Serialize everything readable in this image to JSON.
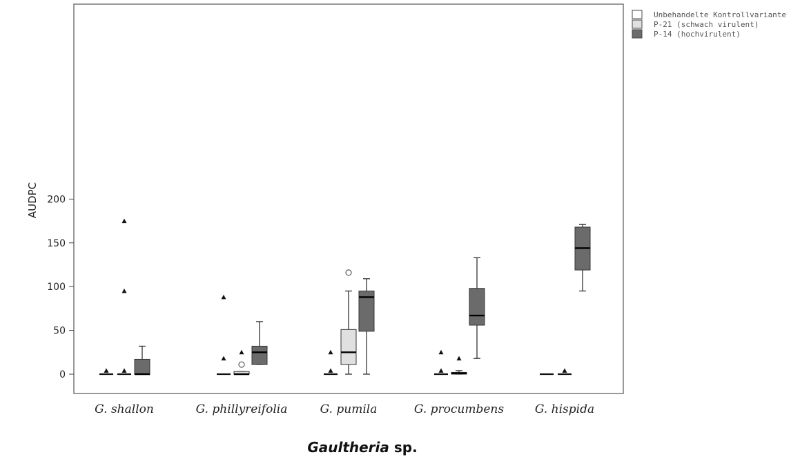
{
  "chart_data": {
    "type": "boxplot",
    "ylabel": "AUDPC",
    "xlabel_italic": "Gaultheria",
    "xlabel_rest": " sp.",
    "yticks": [
      0,
      50,
      100,
      150,
      200
    ],
    "ylim": [
      -10,
      210
    ],
    "categories": [
      "G. shallon",
      "G. phillyreifolia",
      "G. pumila",
      "G. procumbens",
      "G. hispida"
    ],
    "series": [
      {
        "name": "Unbehandelte Kontrollvariante",
        "color": "#ffffff",
        "boxes": [
          {
            "min": 0,
            "q1": 0,
            "median": 0,
            "q3": 0,
            "max": 0,
            "outliers": [],
            "extremes": [
              4
            ]
          },
          {
            "min": 0,
            "q1": 0,
            "median": 0,
            "q3": 0,
            "max": 0,
            "outliers": [],
            "extremes": [
              18,
              88
            ]
          },
          {
            "min": 0,
            "q1": 0,
            "median": 0,
            "q3": 0,
            "max": 0,
            "outliers": [],
            "extremes": [
              4,
              25
            ]
          },
          {
            "min": 0,
            "q1": 0,
            "median": 0,
            "q3": 0,
            "max": 0,
            "outliers": [],
            "extremes": [
              4,
              25
            ]
          },
          {
            "min": 0,
            "q1": 0,
            "median": 0,
            "q3": 0,
            "max": 0,
            "outliers": [],
            "extremes": []
          }
        ]
      },
      {
        "name": "P-21 (schwach virulent)",
        "color": "#e0e0e0",
        "boxes": [
          {
            "min": 0,
            "q1": 0,
            "median": 0,
            "q3": 0,
            "max": 0,
            "outliers": [],
            "extremes": [
              4,
              95,
              175
            ]
          },
          {
            "min": 0,
            "q1": 0,
            "median": 0,
            "q3": 3,
            "max": 3,
            "outliers": [
              11
            ],
            "extremes": [
              25
            ]
          },
          {
            "min": 0,
            "q1": 11,
            "median": 25,
            "q3": 51,
            "max": 95,
            "outliers": [
              116
            ],
            "extremes": []
          },
          {
            "min": 0,
            "q1": 0,
            "median": 1,
            "q3": 2,
            "max": 4,
            "outliers": [],
            "extremes": [
              18
            ]
          },
          {
            "min": 0,
            "q1": 0,
            "median": 0,
            "q3": 0,
            "max": 0,
            "outliers": [],
            "extremes": [
              4
            ]
          }
        ]
      },
      {
        "name": "P-14 (hochvirulent)",
        "color": "#6b6b6b",
        "boxes": [
          {
            "min": 0,
            "q1": 0,
            "median": 0,
            "q3": 17,
            "max": 32,
            "outliers": [],
            "extremes": []
          },
          {
            "min": 11,
            "q1": 11,
            "median": 25,
            "q3": 32,
            "max": 60,
            "outliers": [],
            "extremes": []
          },
          {
            "min": 0,
            "q1": 49,
            "median": 88,
            "q3": 95,
            "max": 109,
            "outliers": [],
            "extremes": []
          },
          {
            "min": 18,
            "q1": 56,
            "median": 67,
            "q3": 98,
            "max": 133,
            "outliers": [],
            "extremes": []
          },
          {
            "min": 95,
            "q1": 119,
            "median": 144,
            "q3": 168,
            "max": 171,
            "outliers": [],
            "extremes": []
          }
        ]
      }
    ],
    "legend_position": "top-right-outside",
    "grid": false
  }
}
